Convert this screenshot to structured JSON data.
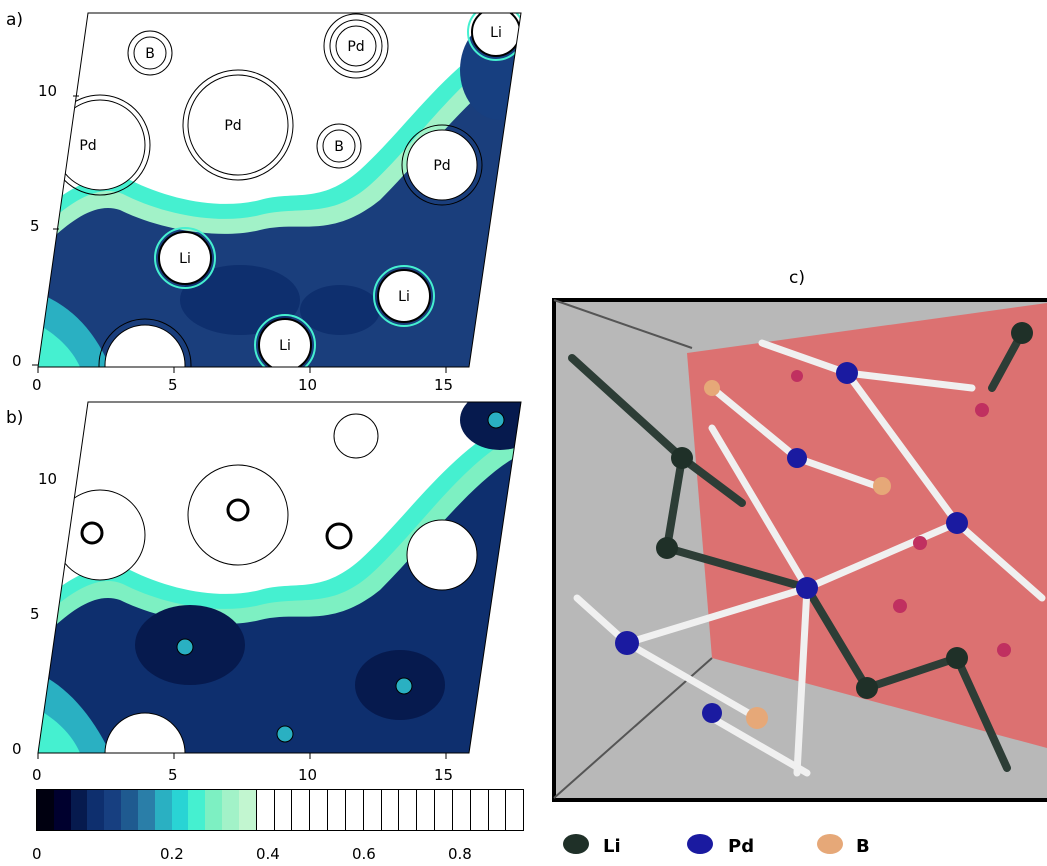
{
  "panels": {
    "a": {
      "label": "a)",
      "x_ticks": [
        "0",
        "5",
        "10",
        "15"
      ],
      "y_ticks": [
        "0",
        "5",
        "10"
      ],
      "atoms": [
        "B",
        "Pd",
        "Li",
        "Pd",
        "Pd",
        "B",
        "Pd",
        "Li",
        "Li",
        "Li"
      ]
    },
    "b": {
      "label": "b)",
      "x_ticks": [
        "0",
        "5",
        "10",
        "15"
      ],
      "y_ticks": [
        "0",
        "5",
        "10"
      ]
    },
    "c": {
      "label": "c)"
    }
  },
  "colorbar": {
    "ticks": [
      "0",
      "0.2",
      "0.4",
      "0.6",
      "0.8"
    ],
    "colors": [
      "#000010",
      "#00002e",
      "#061a4e",
      "#0e2f6e",
      "#173f80",
      "#1f5a90",
      "#2a7ea8",
      "#2ab0c2",
      "#29d4d4",
      "#45f0d0",
      "#7df0c2",
      "#a2f2c8",
      "#c2f6d0"
    ]
  },
  "legend": [
    {
      "label": "Li",
      "color": "#1f3028"
    },
    {
      "label": "Pd",
      "color": "#1a1aa0"
    },
    {
      "label": "B",
      "color": "#e6a878"
    }
  ]
}
